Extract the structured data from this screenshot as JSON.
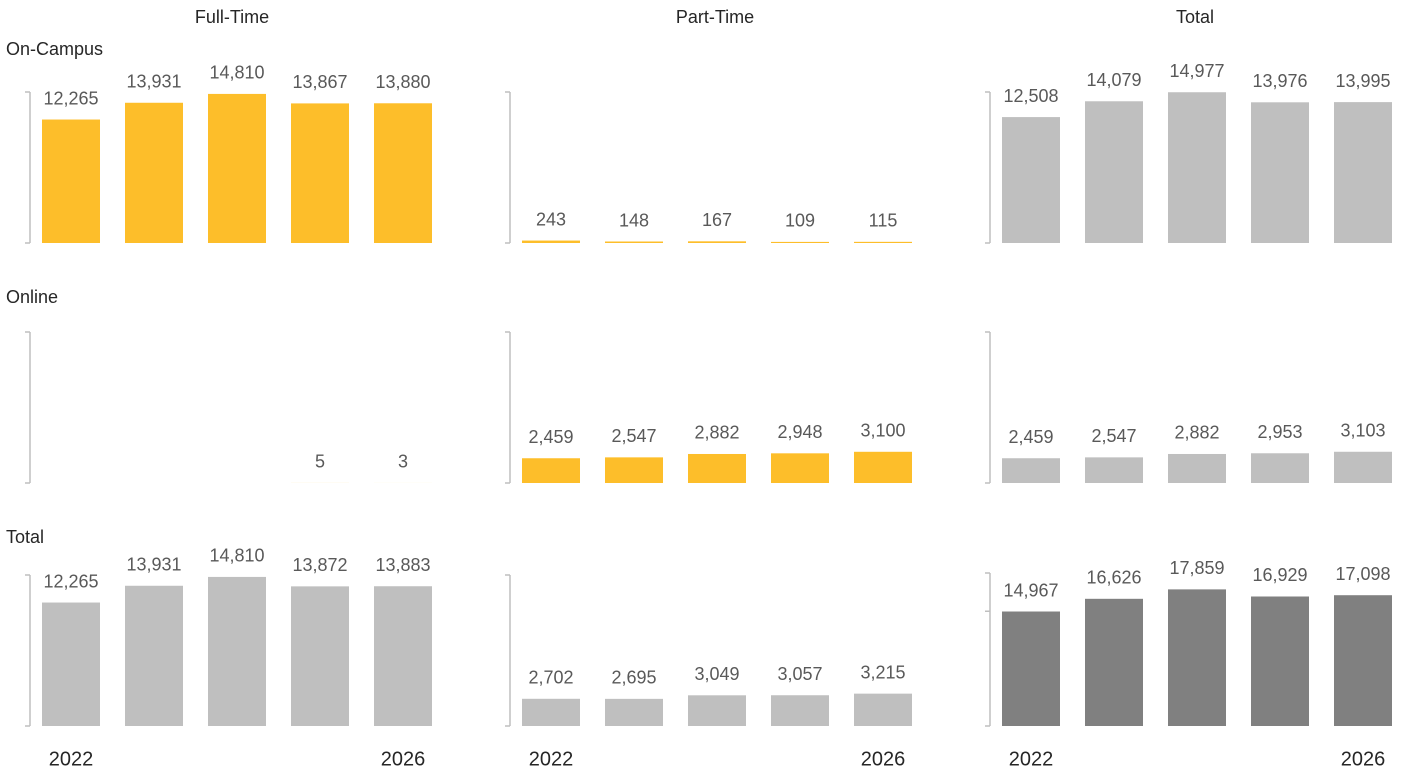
{
  "column_headers": [
    "Full-Time",
    "Part-Time",
    "Total"
  ],
  "row_headers": [
    "On-Campus",
    "Online",
    "Total"
  ],
  "chart_data": [
    {
      "type": "bar",
      "values": [
        12265,
        13931,
        14810,
        13867,
        13880
      ],
      "value_labels": [
        "12,265",
        "13,931",
        "14,810",
        "13,867",
        "13,880"
      ],
      "color": "#fdbe2a",
      "ylim": [
        0,
        15000
      ],
      "yticks": [
        0,
        15000
      ]
    },
    {
      "type": "bar",
      "values": [
        243,
        148,
        167,
        109,
        115
      ],
      "color": "#fdbe2a",
      "ylim": [
        0,
        15000
      ],
      "yticks": [
        0,
        15000
      ]
    },
    {
      "type": "bar",
      "values": [
        12508,
        14079,
        14977,
        13976,
        13995
      ],
      "value_labels": [
        "12,508",
        "14,079",
        "14,977",
        "13,976",
        "13,995"
      ],
      "color": "#bfbfbf",
      "ylim": [
        0,
        15000
      ],
      "yticks": [
        0,
        15000
      ]
    },
    {
      "type": "bar",
      "values": [
        null,
        null,
        null,
        5,
        3
      ],
      "color": "#fdbe2a",
      "ylim": [
        0,
        15000
      ],
      "yticks": [
        0,
        15000
      ]
    },
    {
      "type": "bar",
      "values": [
        2459,
        2547,
        2882,
        2948,
        3100
      ],
      "value_labels": [
        "2,459",
        "2,547",
        "2,882",
        "2,948",
        "3,100"
      ],
      "color": "#fdbe2a",
      "ylim": [
        0,
        15000
      ],
      "yticks": [
        0,
        15000
      ]
    },
    {
      "type": "bar",
      "values": [
        2459,
        2547,
        2882,
        2953,
        3103
      ],
      "value_labels": [
        "2,459",
        "2,547",
        "2,882",
        "2,953",
        "3,103"
      ],
      "color": "#bfbfbf",
      "ylim": [
        0,
        15000
      ],
      "yticks": [
        0,
        15000
      ]
    },
    {
      "type": "bar",
      "categories": [
        "2022",
        null,
        null,
        null,
        "2026"
      ],
      "values": [
        12265,
        13931,
        14810,
        13872,
        13883
      ],
      "value_labels": [
        "12,265",
        "13,931",
        "14,810",
        "13,872",
        "13,883"
      ],
      "color": "#bfbfbf",
      "ylim": [
        0,
        15000
      ],
      "yticks": [
        0,
        15000
      ]
    },
    {
      "type": "bar",
      "categories": [
        "2022",
        null,
        null,
        null,
        "2026"
      ],
      "values": [
        2702,
        2695,
        3049,
        3057,
        3215
      ],
      "value_labels": [
        "2,702",
        "2,695",
        "3,049",
        "3,057",
        "3,215"
      ],
      "color": "#bfbfbf",
      "ylim": [
        0,
        15000
      ],
      "yticks": [
        0,
        15000
      ]
    },
    {
      "type": "bar",
      "categories": [
        "2022",
        null,
        null,
        null,
        "2026"
      ],
      "values": [
        14967,
        16626,
        17859,
        16929,
        17098
      ],
      "value_labels": [
        "14,967",
        "16,626",
        "17,859",
        "16,929",
        "17,098"
      ],
      "color": "#808080",
      "ylim": [
        0,
        20000
      ],
      "yticks": [
        0,
        15000,
        20000
      ]
    }
  ]
}
